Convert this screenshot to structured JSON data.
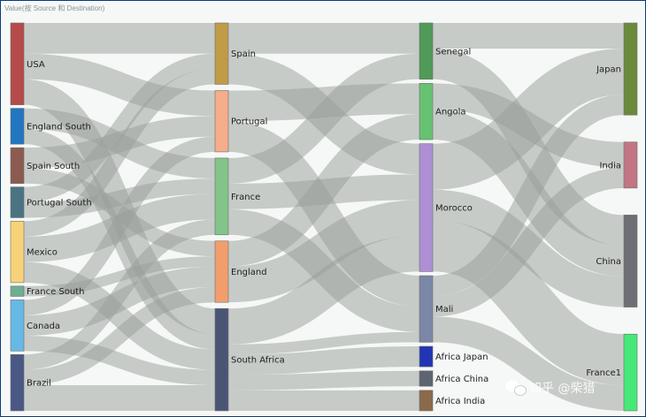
{
  "header": {
    "caption": "Value(按 Source 和 Destination)"
  },
  "watermark": {
    "text": "知乎 @柴猎",
    "icon": "wechat-bubble-icon"
  },
  "link_color": "#9a9d99",
  "chart_data": {
    "type": "sankey",
    "title": "Value(按 Source 和 Destination)",
    "columns": [
      [
        {
          "name": "USA",
          "color": "#b64a4a"
        },
        {
          "name": "England South",
          "color": "#2275c0"
        },
        {
          "name": "Spain South",
          "color": "#8c5a4e"
        },
        {
          "name": "Portugal South",
          "color": "#4a7382"
        },
        {
          "name": "Mexico",
          "color": "#f6d37a"
        },
        {
          "name": "France South",
          "color": "#6fae90"
        },
        {
          "name": "Canada",
          "color": "#66b9e4"
        },
        {
          "name": "Brazil",
          "color": "#4a5886"
        }
      ],
      [
        {
          "name": "Spain",
          "color": "#c09b48"
        },
        {
          "name": "Portugal",
          "color": "#f5ad8a"
        },
        {
          "name": "France",
          "color": "#82c48a"
        },
        {
          "name": "England",
          "color": "#f29e6c"
        },
        {
          "name": "South Africa",
          "color": "#4a5576"
        }
      ],
      [
        {
          "name": "Senegal",
          "color": "#4f9a57"
        },
        {
          "name": "Angola",
          "color": "#66c271"
        },
        {
          "name": "Morocco",
          "color": "#ad8fd5"
        },
        {
          "name": "Mali",
          "color": "#7a88a6"
        },
        {
          "name": "Africa Japan",
          "color": "#2235b3"
        },
        {
          "name": "Africa China",
          "color": "#5c6570"
        },
        {
          "name": "Africa India",
          "color": "#8a6a4a"
        }
      ],
      [
        {
          "name": "Japan",
          "color": "#6b8a3c"
        },
        {
          "name": "India",
          "color": "#c27684"
        },
        {
          "name": "China",
          "color": "#6e6f74"
        },
        {
          "name": "France1",
          "color": "#46e878"
        }
      ]
    ],
    "links": [
      {
        "source": "USA",
        "target": "Spain",
        "value": 6
      },
      {
        "source": "USA",
        "target": "Portugal",
        "value": 5
      },
      {
        "source": "USA",
        "target": "South Africa",
        "value": 5
      },
      {
        "source": "England South",
        "target": "France",
        "value": 4
      },
      {
        "source": "England South",
        "target": "South Africa",
        "value": 3
      },
      {
        "source": "Spain South",
        "target": "Portugal",
        "value": 4
      },
      {
        "source": "Spain South",
        "target": "England",
        "value": 3
      },
      {
        "source": "Portugal South",
        "target": "Spain",
        "value": 3
      },
      {
        "source": "Portugal South",
        "target": "France",
        "value": 3
      },
      {
        "source": "Mexico",
        "target": "Spain",
        "value": 3
      },
      {
        "source": "Mexico",
        "target": "France",
        "value": 5
      },
      {
        "source": "Mexico",
        "target": "South Africa",
        "value": 4
      },
      {
        "source": "France South",
        "target": "England",
        "value": 2
      },
      {
        "source": "Canada",
        "target": "Portugal",
        "value": 3
      },
      {
        "source": "Canada",
        "target": "England",
        "value": 4
      },
      {
        "source": "Canada",
        "target": "South Africa",
        "value": 3
      },
      {
        "source": "Brazil",
        "target": "France",
        "value": 3
      },
      {
        "source": "Brazil",
        "target": "England",
        "value": 3
      },
      {
        "source": "Brazil",
        "target": "South Africa",
        "value": 5
      },
      {
        "source": "Spain",
        "target": "Senegal",
        "value": 6
      },
      {
        "source": "Spain",
        "target": "Morocco",
        "value": 6
      },
      {
        "source": "Portugal",
        "target": "Angola",
        "value": 6
      },
      {
        "source": "Portugal",
        "target": "Mali",
        "value": 6
      },
      {
        "source": "France",
        "target": "Senegal",
        "value": 5
      },
      {
        "source": "France",
        "target": "Morocco",
        "value": 5
      },
      {
        "source": "France",
        "target": "Mali",
        "value": 5
      },
      {
        "source": "England",
        "target": "Angola",
        "value": 5
      },
      {
        "source": "England",
        "target": "Morocco",
        "value": 7
      },
      {
        "source": "South Africa",
        "target": "Morocco",
        "value": 7
      },
      {
        "source": "South Africa",
        "target": "Mali",
        "value": 2
      },
      {
        "source": "South Africa",
        "target": "Africa Japan",
        "value": 4
      },
      {
        "source": "South Africa",
        "target": "Africa China",
        "value": 3
      },
      {
        "source": "South Africa",
        "target": "Africa India",
        "value": 4
      },
      {
        "source": "Senegal",
        "target": "Japan",
        "value": 5
      },
      {
        "source": "Senegal",
        "target": "China",
        "value": 6
      },
      {
        "source": "Angola",
        "target": "India",
        "value": 5
      },
      {
        "source": "Angola",
        "target": "China",
        "value": 6
      },
      {
        "source": "Morocco",
        "target": "Japan",
        "value": 9
      },
      {
        "source": "Morocco",
        "target": "China",
        "value": 6
      },
      {
        "source": "Morocco",
        "target": "France1",
        "value": 10
      },
      {
        "source": "Mali",
        "target": "Japan",
        "value": 4
      },
      {
        "source": "Mali",
        "target": "India",
        "value": 4
      },
      {
        "source": "Mali",
        "target": "France1",
        "value": 5
      }
    ]
  }
}
